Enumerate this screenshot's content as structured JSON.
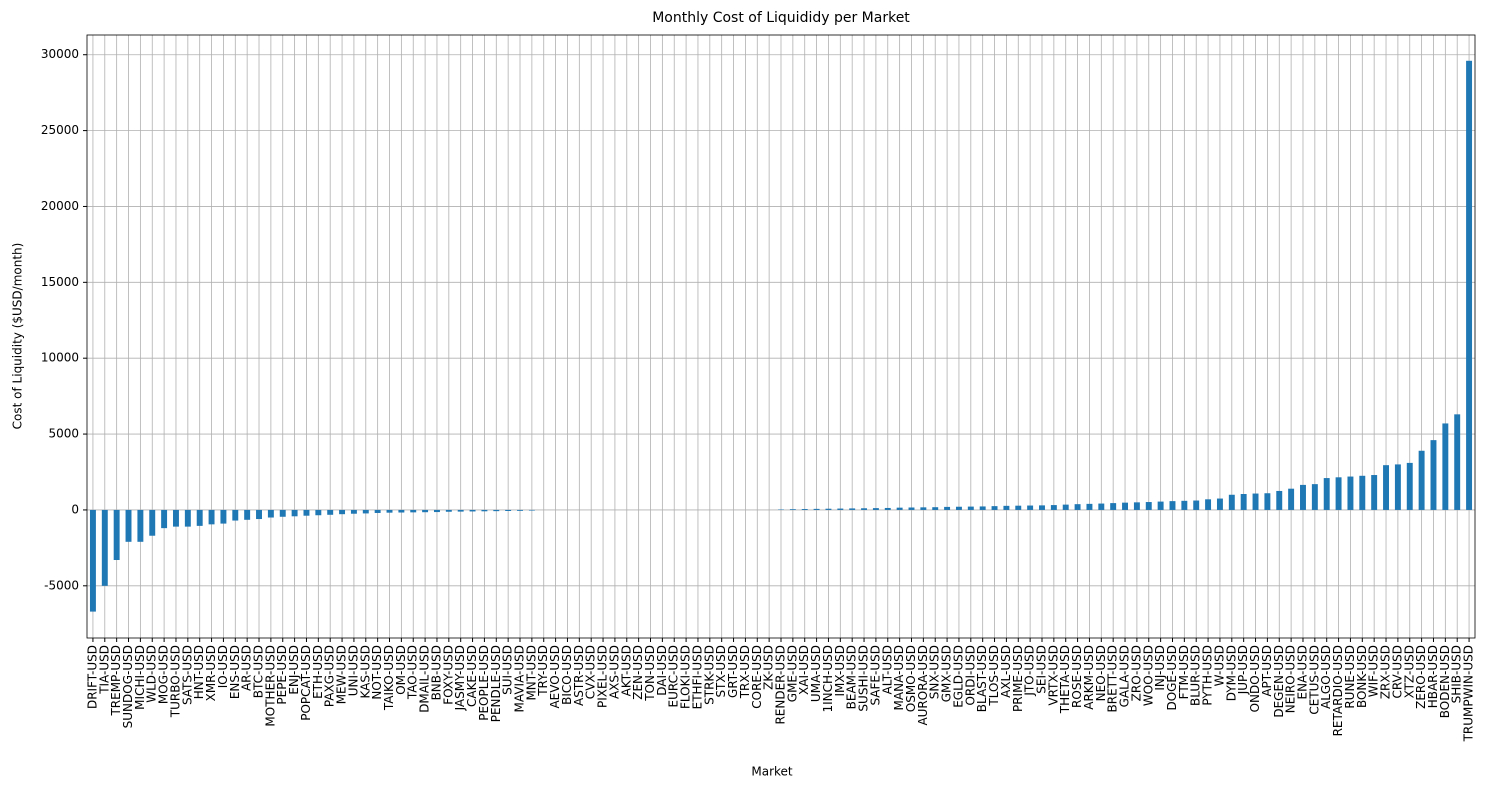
{
  "chart_data": {
    "type": "bar",
    "title": "Monthly Cost of Liquididy per Market",
    "xlabel": "Market",
    "ylabel": "Cost of Liquidity ($USD/month)",
    "color": "#1f77b4",
    "grid": true,
    "categories": [
      "DRIFT-USD",
      "TIA-USD",
      "TREMP-USD",
      "SUNDOG-USD",
      "MICHI-USD",
      "WLD-USD",
      "MOG-USD",
      "TURBO-USD",
      "SATS-USD",
      "HNT-USD",
      "XMR-USD",
      "IO-USD",
      "ENS-USD",
      "AR-USD",
      "BTC-USD",
      "MOTHER-USD",
      "PEPE-USD",
      "ENJ-USD",
      "POPCAT-USD",
      "ETH-USD",
      "PAXG-USD",
      "MEW-USD",
      "UNI-USD",
      "KAS-USD",
      "NOT-USD",
      "TAIKO-USD",
      "OM-USD",
      "TAO-USD",
      "DMAIL-USD",
      "BNB-USD",
      "FOXY-USD",
      "JASMY-USD",
      "CAKE-USD",
      "PEOPLE-USD",
      "PENDLE-USD",
      "SUI-USD",
      "MAVIA-USD",
      "MNT-USD",
      "TRY-USD",
      "AEVO-USD",
      "BICO-USD",
      "ASTR-USD",
      "CVX-USD",
      "PIXEL-USD",
      "AXS-USD",
      "AKT-USD",
      "ZEN-USD",
      "TON-USD",
      "DAI-USD",
      "EURC-USD",
      "FLOKI-USD",
      "ETHFI-USD",
      "STRK-USD",
      "STX-USD",
      "GRT-USD",
      "TRX-USD",
      "CORE-USD",
      "ZK-USD",
      "RENDER-USD",
      "GME-USD",
      "XAI-USD",
      "UMA-USD",
      "1INCH-USD",
      "IMX-USD",
      "BEAM-USD",
      "SUSHI-USD",
      "SAFE-USD",
      "ALT-USD",
      "MANA-USD",
      "OSMO-USD",
      "AURORA-USD",
      "SNX-USD",
      "GMX-USD",
      "EGLD-USD",
      "ORDI-USD",
      "BLAST-USD",
      "TLOS-USD",
      "AXL-USD",
      "PRIME-USD",
      "JTO-USD",
      "SEI-USD",
      "VRTX-USD",
      "THETA-USD",
      "ROSE-USD",
      "ARKM-USD",
      "NEO-USD",
      "BRETT-USD",
      "GALA-USD",
      "ZRO-USD",
      "WOO-USD",
      "INJ-USD",
      "DOGE-USD",
      "FTM-USD",
      "BLUR-USD",
      "PYTH-USD",
      "W-USD",
      "DYM-USD",
      "JUP-USD",
      "ONDO-USD",
      "APT-USD",
      "DEGEN-USD",
      "NEIRO-USD",
      "ENA-USD",
      "CETUS-USD",
      "ALGO-USD",
      "RETARDIO-USD",
      "RUNE-USD",
      "BONK-USD",
      "WIF-USD",
      "ZRX-USD",
      "CRV-USD",
      "XTZ-USD",
      "ZERO-USD",
      "HBAR-USD",
      "BODEN-USD",
      "SHIB-USD",
      "TRUMPWIN-USD"
    ],
    "values": [
      -6700,
      -5000,
      -3300,
      -2100,
      -2100,
      -1700,
      -1200,
      -1100,
      -1100,
      -1050,
      -950,
      -900,
      -700,
      -650,
      -600,
      -500,
      -450,
      -420,
      -380,
      -350,
      -320,
      -280,
      -250,
      -230,
      -200,
      -180,
      -170,
      -160,
      -150,
      -140,
      -120,
      -110,
      -100,
      -90,
      -80,
      -70,
      -60,
      -40,
      0,
      0,
      0,
      0,
      0,
      0,
      0,
      0,
      0,
      0,
      0,
      0,
      0,
      0,
      0,
      0,
      0,
      0,
      0,
      0,
      30,
      50,
      60,
      70,
      80,
      90,
      100,
      110,
      120,
      130,
      150,
      160,
      170,
      180,
      200,
      210,
      220,
      230,
      250,
      270,
      280,
      290,
      300,
      320,
      350,
      380,
      400,
      420,
      450,
      480,
      500,
      520,
      550,
      580,
      600,
      620,
      700,
      750,
      1000,
      1050,
      1080,
      1100,
      1250,
      1400,
      1650,
      1700,
      2100,
      2150,
      2200,
      2250,
      2300,
      2950,
      3000,
      3100,
      3900,
      4600,
      5700,
      6300,
      29600
    ],
    "ylim": [
      -8440,
      31300
    ],
    "yticks": [
      -5000,
      0,
      5000,
      10000,
      15000,
      20000,
      25000,
      30000
    ]
  }
}
